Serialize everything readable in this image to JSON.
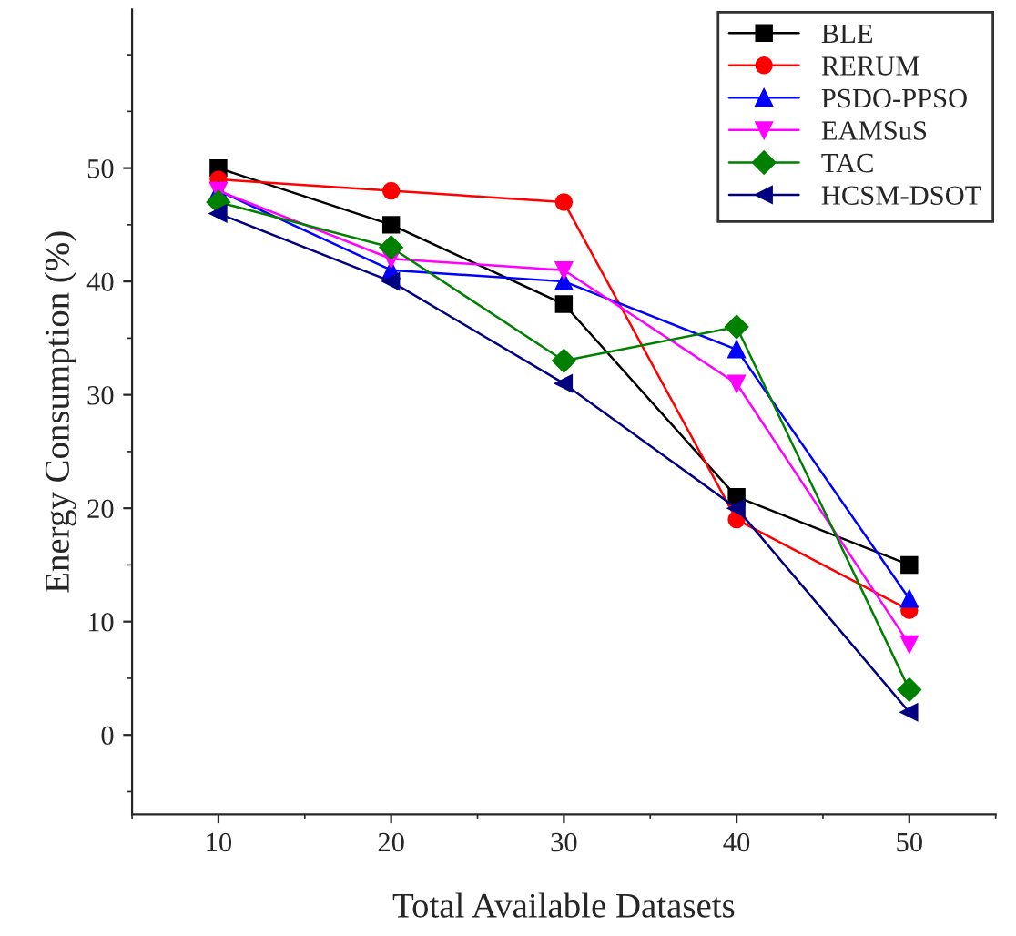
{
  "chart_data": {
    "type": "line",
    "xlabel": "Total Available Datasets",
    "ylabel": "Energy Consumption (%)",
    "x": [
      10,
      20,
      30,
      40,
      50
    ],
    "series": [
      {
        "name": "BLE",
        "color": "#000000",
        "marker": "square",
        "values": [
          50,
          45,
          38,
          21,
          15
        ]
      },
      {
        "name": "RERUM",
        "color": "#ff0000",
        "marker": "circle",
        "values": [
          49,
          48,
          47,
          19,
          11
        ]
      },
      {
        "name": "PSDO-PPSO",
        "color": "#0000ff",
        "marker": "triangle",
        "values": [
          48,
          41,
          40,
          34,
          12
        ]
      },
      {
        "name": "EAMSuS",
        "color": "#ff00ff",
        "marker": "triangle_down",
        "values": [
          48,
          42,
          41,
          31,
          8
        ]
      },
      {
        "name": "TAC",
        "color": "#008000",
        "marker": "diamond",
        "values": [
          47,
          43,
          33,
          36,
          4
        ]
      },
      {
        "name": "HCSM-DSOT",
        "color": "#000080",
        "marker": "triangle_left",
        "values": [
          46,
          40,
          31,
          20,
          2
        ]
      }
    ],
    "xlim": [
      5,
      55
    ],
    "xticks": [
      10,
      20,
      30,
      40,
      50
    ],
    "ylim": [
      -7,
      64
    ],
    "yticks": [
      0,
      10,
      20,
      30,
      40,
      50
    ],
    "grid": false,
    "legend": "top right",
    "line_style": "solid"
  }
}
